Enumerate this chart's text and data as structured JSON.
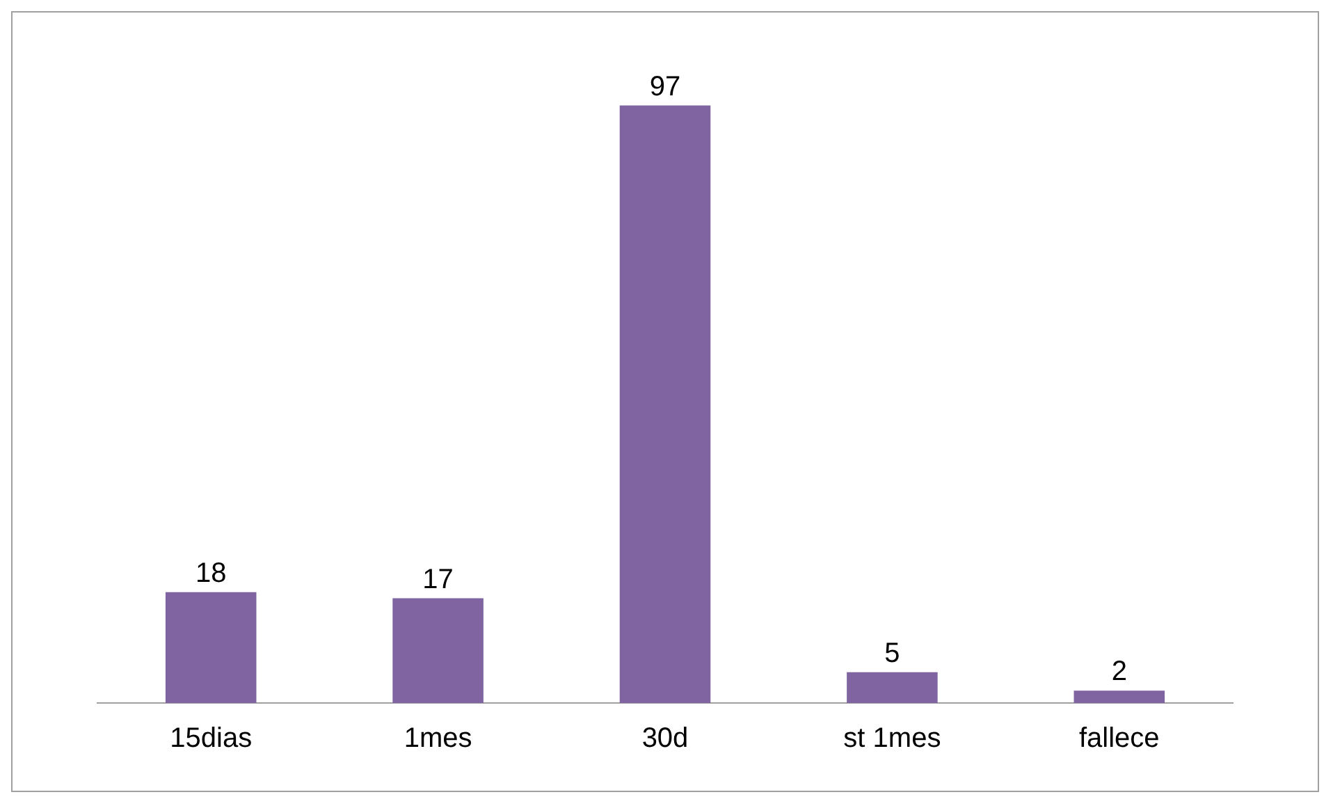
{
  "chart_data": {
    "type": "bar",
    "categories": [
      "15dias",
      "1mes",
      "30d",
      "st 1mes",
      "fallece"
    ],
    "values": [
      18,
      17,
      97,
      5,
      2
    ],
    "color": "#8064a2",
    "data_labels": true,
    "grid": false,
    "legend": false,
    "tick_labels": "x"
  }
}
